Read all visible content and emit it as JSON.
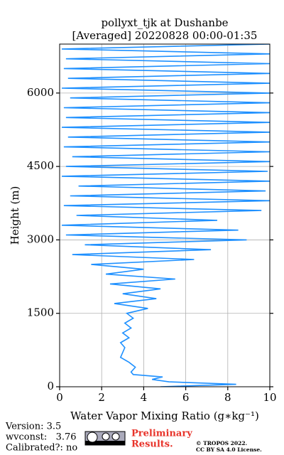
{
  "chart_data": {
    "type": "line",
    "title": "pollyxt_tjk at Dushanbe",
    "subtitle": "[Averaged] 20220828 00:00-01:35",
    "x_label": "Water Vapor Mixing Ratio (g∗kg⁻¹)",
    "y_label": "Height (m)",
    "y": [
      0,
      50,
      100,
      150,
      200,
      250,
      300,
      400,
      500,
      600,
      700,
      800,
      900,
      1000,
      1100,
      1200,
      1300,
      1400,
      1500,
      1600,
      1700,
      1800,
      1900,
      2000,
      2100,
      2200,
      2300,
      2400,
      2500,
      2600,
      2700,
      2800,
      2900,
      3000,
      3100,
      3200,
      3300,
      3400,
      3500,
      3600,
      3700,
      3800,
      3900,
      4000,
      4100,
      4200,
      4300,
      4400,
      4500,
      4600,
      4700,
      4800,
      4900,
      5000,
      5100,
      5200,
      5300,
      5400,
      5500,
      5600,
      5700,
      5800,
      5900,
      6000,
      6100,
      6200,
      6300,
      6400,
      6500,
      6600,
      6700,
      6800,
      6900,
      7000
    ],
    "series": [
      {
        "color": "#1e90ff",
        "values": [
          4.8,
          8.4,
          5.2,
          4.4,
          4.9,
          3.5,
          3.4,
          3.6,
          3.3,
          2.9,
          3.0,
          3.1,
          2.9,
          3.3,
          3.0,
          3.4,
          3.1,
          3.5,
          3.2,
          4.2,
          2.6,
          4.6,
          3.0,
          4.8,
          2.4,
          5.5,
          2.2,
          4.0,
          1.5,
          6.4,
          0.6,
          7.2,
          1.2,
          8.9,
          0.3,
          8.5,
          0.1,
          7.5,
          0.8,
          9.6,
          0.2,
          10,
          0.5,
          9.8,
          0.9,
          10,
          0.1,
          9.9,
          0.3,
          10,
          0.6,
          10,
          0.2,
          10,
          0.4,
          10,
          0.1,
          10,
          0.3,
          10,
          0.2,
          10,
          0.5,
          10,
          0.1,
          10,
          0.4,
          10,
          0.2,
          10,
          0.3,
          10,
          0.1,
          10
        ]
      }
    ],
    "xlim": [
      0,
      10
    ],
    "xticks": [
      0,
      2,
      4,
      6,
      8,
      10
    ],
    "ylim": [
      0,
      7000
    ],
    "yticks": [
      0,
      1500,
      3000,
      4500,
      6000
    ],
    "grid": true
  },
  "footer": {
    "version": "Version: 3.5",
    "wvconst": "wvconst:   3.76",
    "calibrated": "Calibrated?: no",
    "notice": [
      "Preliminary",
      "Results."
    ],
    "license": [
      "© TROPOS 2022.",
      "CC BY SA 4.0 License."
    ]
  }
}
